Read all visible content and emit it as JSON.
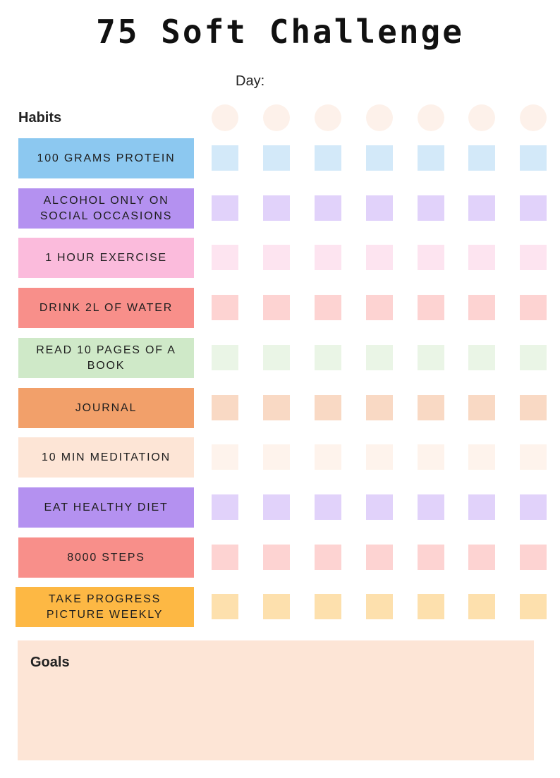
{
  "title": "75 Soft Challenge",
  "day_label": "Day:",
  "habits_label": "Habits",
  "goals_label": "Goals",
  "day_columns": 7,
  "circle_color": "#fdf1ea",
  "habits": [
    {
      "label": "100 GRAMS PROTEIN",
      "color": "#8cc8f0",
      "box_color": "#d3e9f9"
    },
    {
      "label": "ALCOHOL ONLY ON SOCIAL OCCASIONS",
      "color": "#b491f0",
      "box_color": "#e1d2fa"
    },
    {
      "label": "1 HOUR EXERCISE",
      "color": "#fbbbdc",
      "box_color": "#fde4f0"
    },
    {
      "label": "DRINK 2L OF WATER",
      "color": "#f88f8a",
      "box_color": "#fdd3d2"
    },
    {
      "label": "READ 10 PAGES OF A BOOK",
      "color": "#cfe9c8",
      "box_color": "#eaf5e6"
    },
    {
      "label": "JOURNAL",
      "color": "#f2a06a",
      "box_color": "#f9d9c4"
    },
    {
      "label": "10 MIN MEDITATION",
      "color": "#fde5d6",
      "box_color": "#fef3ec"
    },
    {
      "label": "EAT HEALTHY DIET",
      "color": "#b491f0",
      "box_color": "#e1d2fa"
    },
    {
      "label": "8000 STEPS",
      "color": "#f88f8a",
      "box_color": "#fdd3d2"
    },
    {
      "label": "TAKE PROGRESS PICTURE WEEKLY",
      "color": "#fdb844",
      "box_color": "#fde0ad"
    }
  ]
}
